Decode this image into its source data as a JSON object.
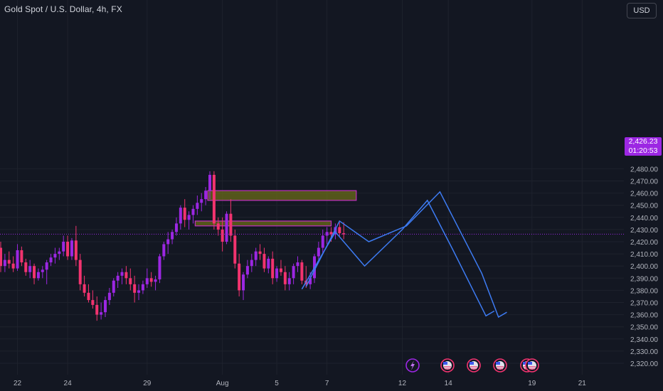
{
  "header": {
    "title": "Gold Spot / U.S. Dollar, 4h, FX",
    "currency": "USD"
  },
  "last_price": {
    "value": "2,426.23",
    "countdown": "01:20:53"
  },
  "colors": {
    "background": "#131722",
    "bull": "#9c27e3",
    "bear": "#f2336f",
    "zone_fill": "#6b6b1a",
    "zone_border": "#c030c0",
    "projection": "#3d7bf2",
    "grid": "#1e222d",
    "axis_text": "#b2b5be"
  },
  "chart_data": {
    "type": "candlestick",
    "title": "Gold Spot / U.S. Dollar, 4h, FX",
    "ylim": [
      2315,
      2485
    ],
    "y_ticks": [
      2320,
      2330,
      2340,
      2350,
      2360,
      2370,
      2380,
      2390,
      2400,
      2410,
      2420,
      2430,
      2440,
      2450,
      2460,
      2470,
      2480
    ],
    "y_tick_labels": [
      "2,320.00",
      "2,330.00",
      "2,340.00",
      "2,350.00",
      "2,360.00",
      "2,370.00",
      "2,380.00",
      "2,390.00",
      "2,400.00",
      "2,410.00",
      "2,420.00",
      "2,430.00",
      "2,440.00",
      "2,450.00",
      "2,460.00",
      "2,470.00",
      "2,480.00"
    ],
    "x_tick_labels": [
      "22",
      "24",
      "29",
      "Aug",
      "5",
      "7",
      "12",
      "14",
      "19",
      "21"
    ],
    "x_tick_index": [
      4,
      16,
      35,
      53,
      66,
      78,
      96,
      107,
      127,
      139
    ],
    "candles": [
      [
        2415,
        2420,
        2395,
        2400
      ],
      [
        2400,
        2410,
        2395,
        2405
      ],
      [
        2405,
        2412,
        2398,
        2402
      ],
      [
        2402,
        2408,
        2395,
        2398
      ],
      [
        2398,
        2418,
        2396,
        2413
      ],
      [
        2413,
        2416,
        2400,
        2403
      ],
      [
        2403,
        2406,
        2392,
        2395
      ],
      [
        2395,
        2405,
        2390,
        2400
      ],
      [
        2400,
        2402,
        2385,
        2390
      ],
      [
        2390,
        2398,
        2388,
        2395
      ],
      [
        2395,
        2400,
        2390,
        2397
      ],
      [
        2397,
        2405,
        2385,
        2403
      ],
      [
        2403,
        2410,
        2400,
        2407
      ],
      [
        2407,
        2415,
        2402,
        2410
      ],
      [
        2410,
        2415,
        2405,
        2412
      ],
      [
        2412,
        2425,
        2408,
        2420
      ],
      [
        2420,
        2425,
        2405,
        2408
      ],
      [
        2408,
        2423,
        2405,
        2421
      ],
      [
        2421,
        2433,
        2400,
        2405
      ],
      [
        2405,
        2410,
        2380,
        2385
      ],
      [
        2385,
        2392,
        2375,
        2378
      ],
      [
        2378,
        2385,
        2370,
        2372
      ],
      [
        2372,
        2380,
        2365,
        2368
      ],
      [
        2368,
        2375,
        2355,
        2360
      ],
      [
        2360,
        2370,
        2356,
        2362
      ],
      [
        2362,
        2375,
        2358,
        2372
      ],
      [
        2372,
        2382,
        2368,
        2378
      ],
      [
        2378,
        2390,
        2375,
        2388
      ],
      [
        2388,
        2395,
        2382,
        2392
      ],
      [
        2392,
        2398,
        2385,
        2395
      ],
      [
        2395,
        2400,
        2385,
        2390
      ],
      [
        2390,
        2398,
        2380,
        2385
      ],
      [
        2385,
        2392,
        2370,
        2378
      ],
      [
        2378,
        2385,
        2372,
        2380
      ],
      [
        2380,
        2388,
        2377,
        2385
      ],
      [
        2385,
        2398,
        2382,
        2390
      ],
      [
        2390,
        2395,
        2383,
        2387
      ],
      [
        2387,
        2392,
        2380,
        2389
      ],
      [
        2389,
        2410,
        2386,
        2408
      ],
      [
        2408,
        2420,
        2405,
        2418
      ],
      [
        2418,
        2428,
        2410,
        2422
      ],
      [
        2422,
        2430,
        2418,
        2428
      ],
      [
        2428,
        2440,
        2425,
        2435
      ],
      [
        2435,
        2450,
        2430,
        2448
      ],
      [
        2448,
        2455,
        2432,
        2438
      ],
      [
        2438,
        2445,
        2430,
        2442
      ],
      [
        2442,
        2450,
        2435,
        2447
      ],
      [
        2447,
        2458,
        2442,
        2452
      ],
      [
        2452,
        2460,
        2445,
        2455
      ],
      [
        2455,
        2465,
        2450,
        2462
      ],
      [
        2462,
        2478,
        2455,
        2475
      ],
      [
        2475,
        2478,
        2430,
        2435
      ],
      [
        2435,
        2440,
        2425,
        2430
      ],
      [
        2430,
        2440,
        2412,
        2420
      ],
      [
        2420,
        2445,
        2418,
        2443
      ],
      [
        2443,
        2455,
        2420,
        2425
      ],
      [
        2425,
        2430,
        2398,
        2402
      ],
      [
        2402,
        2410,
        2375,
        2380
      ],
      [
        2380,
        2395,
        2372,
        2393
      ],
      [
        2393,
        2405,
        2390,
        2400
      ],
      [
        2400,
        2410,
        2395,
        2405
      ],
      [
        2405,
        2415,
        2400,
        2412
      ],
      [
        2412,
        2418,
        2405,
        2410
      ],
      [
        2410,
        2415,
        2395,
        2398
      ],
      [
        2398,
        2408,
        2394,
        2406
      ],
      [
        2406,
        2412,
        2385,
        2390
      ],
      [
        2390,
        2400,
        2387,
        2398
      ],
      [
        2398,
        2405,
        2392,
        2395
      ],
      [
        2395,
        2400,
        2380,
        2385
      ],
      [
        2385,
        2395,
        2380,
        2390
      ],
      [
        2390,
        2402,
        2385,
        2400
      ],
      [
        2400,
        2408,
        2395,
        2403
      ],
      [
        2403,
        2405,
        2385,
        2388
      ],
      [
        2388,
        2400,
        2382,
        2385
      ],
      [
        2385,
        2395,
        2381,
        2390
      ],
      [
        2390,
        2410,
        2386,
        2408
      ],
      [
        2408,
        2420,
        2405,
        2415
      ],
      [
        2415,
        2430,
        2410,
        2425
      ],
      [
        2425,
        2432,
        2418,
        2428
      ],
      [
        2428,
        2432,
        2420,
        2426
      ],
      [
        2426,
        2435,
        2422,
        2432
      ],
      [
        2432,
        2436,
        2424,
        2427
      ],
      [
        2427,
        2436,
        2422,
        2426
      ]
    ],
    "zones": [
      {
        "start_index": 50,
        "end_index": 85,
        "top": 2462,
        "bottom": 2454
      },
      {
        "start_index": 47,
        "end_index": 79,
        "top": 2437,
        "bottom": 2433
      }
    ],
    "projection_paths": [
      {
        "points": [
          [
            73,
            2383
          ],
          [
            81,
            2437
          ],
          [
            88,
            2420
          ],
          [
            97,
            2433
          ],
          [
            105,
            2461
          ],
          [
            115,
            2394
          ],
          [
            119,
            2358
          ],
          [
            121,
            2362
          ]
        ]
      },
      {
        "points": [
          [
            72,
            2381
          ],
          [
            80,
            2428
          ],
          [
            87,
            2400
          ],
          [
            96,
            2430
          ],
          [
            102,
            2454
          ],
          [
            108,
            2414
          ],
          [
            116,
            2359
          ],
          [
            118,
            2363
          ]
        ]
      }
    ]
  }
}
